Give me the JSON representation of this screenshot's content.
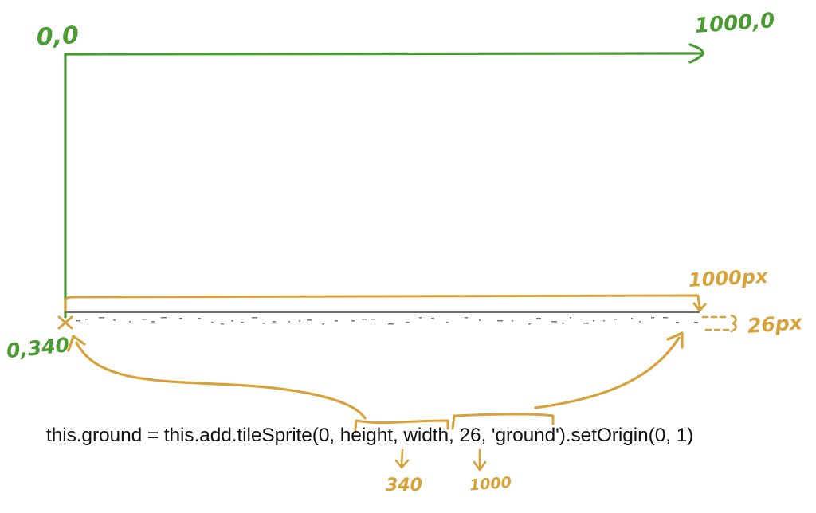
{
  "labels": {
    "origin": "0,0",
    "top_right": "1000,0",
    "bottom_left": "0,340",
    "width_px": "1000px",
    "height_px": "26px",
    "height_value": "340",
    "width_value": "1000"
  },
  "code_line": "this.ground = this.add.tileSprite(0, height, width, 26, 'ground').setOrigin(0, 1)",
  "colors": {
    "green": "#4a9b32",
    "orange": "#d8a23a",
    "ground_line": "#6b6b6b"
  }
}
